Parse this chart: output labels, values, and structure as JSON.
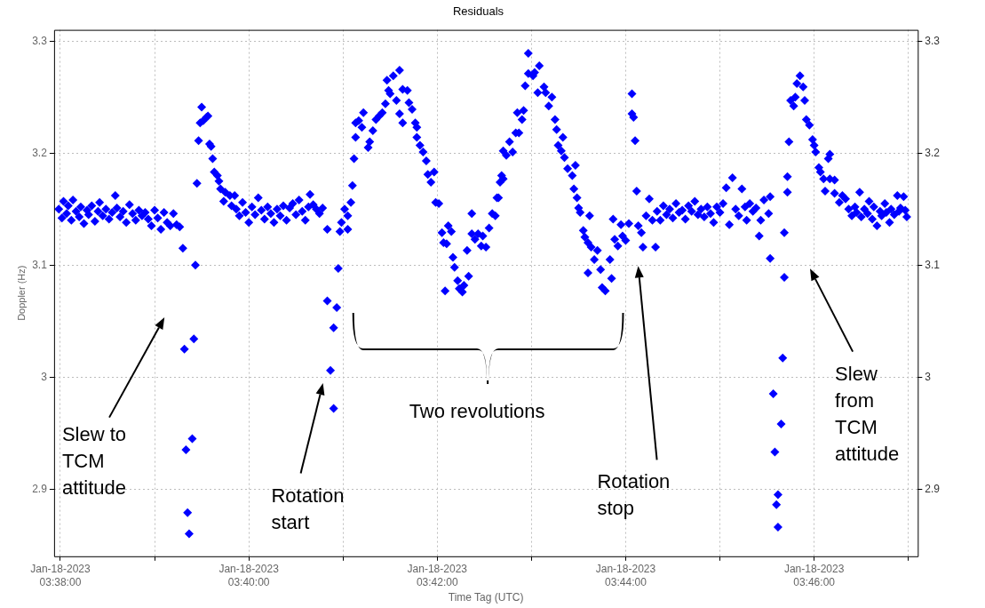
{
  "chart_data": {
    "type": "scatter",
    "title": "Residuals",
    "xlabel": "Time Tag (UTC)",
    "ylabel": "Doppler (Hz)",
    "xlim": [
      "2023-01-18T03:37:56",
      "2023-01-18T03:47:06"
    ],
    "xticks": [
      {
        "value": "2023-01-18T03:38:00",
        "label": "Jan-18-2023\n03:38:00"
      },
      {
        "value": "2023-01-18T03:39:00",
        "label": null
      },
      {
        "value": "2023-01-18T03:40:00",
        "label": "Jan-18-2023\n03:40:00"
      },
      {
        "value": "2023-01-18T03:41:00",
        "label": null
      },
      {
        "value": "2023-01-18T03:42:00",
        "label": "Jan-18-2023\n03:42:00"
      },
      {
        "value": "2023-01-18T03:43:00",
        "label": null
      },
      {
        "value": "2023-01-18T03:44:00",
        "label": "Jan-18-2023\n03:44:00"
      },
      {
        "value": "2023-01-18T03:45:00",
        "label": null
      },
      {
        "value": "2023-01-18T03:46:00",
        "label": "Jan-18-2023\n03:46:00"
      },
      {
        "value": "2023-01-18T03:47:00",
        "label": null
      }
    ],
    "ylim": [
      2.84,
      3.31
    ],
    "yticks": [
      2.9,
      3.0,
      3.1,
      3.2,
      3.3
    ],
    "y2lim": [
      2.84,
      3.31
    ],
    "y2ticks": [
      2.9,
      3.0,
      3.1,
      3.2,
      3.3
    ],
    "grid": true,
    "legend": false,
    "marker": "diamond",
    "annotations": [
      "Slew to TCM attitude",
      "Rotation start",
      "Two revolutions",
      "Rotation stop",
      "Slew from TCM attitude"
    ],
    "series": [
      {
        "color": "#0000ff",
        "x": [
          "2023-01-18T03:37:59",
          "2023-01-18T03:38:01",
          "2023-01-18T03:38:02",
          "2023-01-18T03:38:04",
          "2023-01-18T03:38:05",
          "2023-01-18T03:38:07",
          "2023-01-18T03:38:08",
          "2023-01-18T03:38:10",
          "2023-01-18T03:38:12",
          "2023-01-18T03:38:13",
          "2023-01-18T03:38:15",
          "2023-01-18T03:38:17",
          "2023-01-18T03:38:18",
          "2023-01-18T03:38:20",
          "2023-01-18T03:38:22",
          "2023-01-18T03:38:24",
          "2023-01-18T03:38:25",
          "2023-01-18T03:38:27",
          "2023-01-18T03:38:29",
          "2023-01-18T03:38:31",
          "2023-01-18T03:38:33",
          "2023-01-18T03:38:35",
          "2023-01-18T03:38:36",
          "2023-01-18T03:38:38",
          "2023-01-18T03:38:40",
          "2023-01-18T03:38:42",
          "2023-01-18T03:38:44",
          "2023-01-18T03:38:46",
          "2023-01-18T03:38:48",
          "2023-01-18T03:38:50",
          "2023-01-18T03:38:52",
          "2023-01-18T03:38:54",
          "2023-01-18T03:38:56",
          "2023-01-18T03:38:58",
          "2023-01-18T03:39:00",
          "2023-01-18T03:39:02",
          "2023-01-18T03:39:04",
          "2023-01-18T03:39:06",
          "2023-01-18T03:39:08",
          "2023-01-18T03:39:10",
          "2023-01-18T03:39:12",
          "2023-01-18T03:39:14",
          "2023-01-18T03:39:16",
          "2023-01-18T03:39:18",
          "2023-01-18T03:39:19",
          "2023-01-18T03:39:20",
          "2023-01-18T03:39:21",
          "2023-01-18T03:39:22",
          "2023-01-18T03:39:24",
          "2023-01-18T03:39:25",
          "2023-01-18T03:39:26",
          "2023-01-18T03:39:27",
          "2023-01-18T03:39:28",
          "2023-01-18T03:39:29",
          "2023-01-18T03:39:30",
          "2023-01-18T03:39:31",
          "2023-01-18T03:39:33",
          "2023-01-18T03:39:34",
          "2023-01-18T03:39:35",
          "2023-01-18T03:39:36",
          "2023-01-18T03:39:37",
          "2023-01-18T03:39:38",
          "2023-01-18T03:39:40",
          "2023-01-18T03:39:41",
          "2023-01-18T03:39:42",
          "2023-01-18T03:39:44",
          "2023-01-18T03:39:45",
          "2023-01-18T03:39:48",
          "2023-01-18T03:39:49",
          "2023-01-18T03:39:51",
          "2023-01-18T03:39:52",
          "2023-01-18T03:39:54",
          "2023-01-18T03:39:56",
          "2023-01-18T03:39:58",
          "2023-01-18T03:40:00",
          "2023-01-18T03:40:02",
          "2023-01-18T03:40:04",
          "2023-01-18T03:40:06",
          "2023-01-18T03:40:08",
          "2023-01-18T03:40:10",
          "2023-01-18T03:40:12",
          "2023-01-18T03:40:14",
          "2023-01-18T03:40:16",
          "2023-01-18T03:40:18",
          "2023-01-18T03:40:20",
          "2023-01-18T03:40:22",
          "2023-01-18T03:40:24",
          "2023-01-18T03:40:26",
          "2023-01-18T03:40:28",
          "2023-01-18T03:40:30",
          "2023-01-18T03:40:32",
          "2023-01-18T03:40:34",
          "2023-01-18T03:40:36",
          "2023-01-18T03:40:38",
          "2023-01-18T03:40:39",
          "2023-01-18T03:40:41",
          "2023-01-18T03:40:43",
          "2023-01-18T03:40:45",
          "2023-01-18T03:40:47",
          "2023-01-18T03:40:50",
          "2023-01-18T03:40:50",
          "2023-01-18T03:40:52",
          "2023-01-18T03:40:54",
          "2023-01-18T03:40:54",
          "2023-01-18T03:40:56",
          "2023-01-18T03:40:57",
          "2023-01-18T03:40:58",
          "2023-01-18T03:40:59",
          "2023-01-18T03:41:01",
          "2023-01-18T03:41:03",
          "2023-01-18T03:41:03",
          "2023-01-18T03:41:05",
          "2023-01-18T03:41:06",
          "2023-01-18T03:41:07",
          "2023-01-18T03:41:08",
          "2023-01-18T03:41:08",
          "2023-01-18T03:41:10",
          "2023-01-18T03:41:12",
          "2023-01-18T03:41:13",
          "2023-01-18T03:41:16",
          "2023-01-18T03:41:17",
          "2023-01-18T03:41:19",
          "2023-01-18T03:41:21",
          "2023-01-18T03:41:23",
          "2023-01-18T03:41:25",
          "2023-01-18T03:41:27",
          "2023-01-18T03:41:28",
          "2023-01-18T03:41:29",
          "2023-01-18T03:41:30",
          "2023-01-18T03:41:32",
          "2023-01-18T03:41:34",
          "2023-01-18T03:41:36",
          "2023-01-18T03:41:36",
          "2023-01-18T03:41:38",
          "2023-01-18T03:41:38",
          "2023-01-18T03:41:41",
          "2023-01-18T03:41:42",
          "2023-01-18T03:41:44",
          "2023-01-18T03:41:46",
          "2023-01-18T03:41:47",
          "2023-01-18T03:41:47",
          "2023-01-18T03:41:49",
          "2023-01-18T03:41:51",
          "2023-01-18T03:41:53",
          "2023-01-18T03:41:54",
          "2023-01-18T03:41:56",
          "2023-01-18T03:41:58",
          "2023-01-18T03:41:59",
          "2023-01-18T03:42:01",
          "2023-01-18T03:42:03",
          "2023-01-18T03:42:04",
          "2023-01-18T03:42:05",
          "2023-01-18T03:42:06",
          "2023-01-18T03:42:07",
          "2023-01-18T03:42:09",
          "2023-01-18T03:42:10",
          "2023-01-18T03:42:11",
          "2023-01-18T03:42:13",
          "2023-01-18T03:42:14",
          "2023-01-18T03:42:16",
          "2023-01-18T03:42:17",
          "2023-01-18T03:42:19",
          "2023-01-18T03:42:20",
          "2023-01-18T03:42:22",
          "2023-01-18T03:42:22",
          "2023-01-18T03:42:24",
          "2023-01-18T03:42:26",
          "2023-01-18T03:42:28",
          "2023-01-18T03:42:29",
          "2023-01-18T03:42:31",
          "2023-01-18T03:42:33",
          "2023-01-18T03:42:35",
          "2023-01-18T03:42:37",
          "2023-01-18T03:42:38",
          "2023-01-18T03:42:39",
          "2023-01-18T03:42:40",
          "2023-01-18T03:42:41",
          "2023-01-18T03:42:42",
          "2023-01-18T03:42:42",
          "2023-01-18T03:42:44",
          "2023-01-18T03:42:46",
          "2023-01-18T03:42:48",
          "2023-01-18T03:42:50",
          "2023-01-18T03:42:51",
          "2023-01-18T03:42:52",
          "2023-01-18T03:42:54",
          "2023-01-18T03:42:55",
          "2023-01-18T03:42:56",
          "2023-01-18T03:42:58",
          "2023-01-18T03:42:58",
          "2023-01-18T03:43:01",
          "2023-01-18T03:43:02",
          "2023-01-18T03:43:04",
          "2023-01-18T03:43:05",
          "2023-01-18T03:43:08",
          "2023-01-18T03:43:09",
          "2023-01-18T03:43:11",
          "2023-01-18T03:43:13",
          "2023-01-18T03:43:15",
          "2023-01-18T03:43:16",
          "2023-01-18T03:43:17",
          "2023-01-18T03:43:19",
          "2023-01-18T03:43:20",
          "2023-01-18T03:43:21",
          "2023-01-18T03:43:23",
          "2023-01-18T03:43:26",
          "2023-01-18T03:43:27",
          "2023-01-18T03:43:28",
          "2023-01-18T03:43:29",
          "2023-01-18T03:43:30",
          "2023-01-18T03:43:31",
          "2023-01-18T03:43:33",
          "2023-01-18T03:43:34",
          "2023-01-18T03:43:36",
          "2023-01-18T03:43:36",
          "2023-01-18T03:43:37",
          "2023-01-18T03:43:38",
          "2023-01-18T03:43:40",
          "2023-01-18T03:43:42",
          "2023-01-18T03:43:44",
          "2023-01-18T03:43:45",
          "2023-01-18T03:43:47",
          "2023-01-18T03:43:50",
          "2023-01-18T03:43:51",
          "2023-01-18T03:43:52",
          "2023-01-18T03:43:53",
          "2023-01-18T03:43:55",
          "2023-01-18T03:43:57",
          "2023-01-18T03:43:58",
          "2023-01-18T03:44:00",
          "2023-01-18T03:44:02",
          "2023-01-18T03:44:04",
          "2023-01-18T03:44:04",
          "2023-01-18T03:44:05",
          "2023-01-18T03:44:06",
          "2023-01-18T03:44:07",
          "2023-01-18T03:44:08",
          "2023-01-18T03:44:10",
          "2023-01-18T03:44:11",
          "2023-01-18T03:44:13",
          "2023-01-18T03:44:15",
          "2023-01-18T03:44:17",
          "2023-01-18T03:44:19",
          "2023-01-18T03:44:20",
          "2023-01-18T03:44:22",
          "2023-01-18T03:44:24",
          "2023-01-18T03:44:26",
          "2023-01-18T03:44:28",
          "2023-01-18T03:44:30",
          "2023-01-18T03:44:32",
          "2023-01-18T03:44:34",
          "2023-01-18T03:44:36",
          "2023-01-18T03:44:38",
          "2023-01-18T03:44:40",
          "2023-01-18T03:44:42",
          "2023-01-18T03:44:44",
          "2023-01-18T03:44:46",
          "2023-01-18T03:44:48",
          "2023-01-18T03:44:50",
          "2023-01-18T03:44:52",
          "2023-01-18T03:44:54",
          "2023-01-18T03:44:56",
          "2023-01-18T03:44:58",
          "2023-01-18T03:45:00",
          "2023-01-18T03:45:02",
          "2023-01-18T03:45:04",
          "2023-01-18T03:45:06",
          "2023-01-18T03:45:08",
          "2023-01-18T03:45:10",
          "2023-01-18T03:45:12",
          "2023-01-18T03:45:14",
          "2023-01-18T03:45:16",
          "2023-01-18T03:45:17",
          "2023-01-18T03:45:19",
          "2023-01-18T03:45:21",
          "2023-01-18T03:45:23",
          "2023-01-18T03:45:25",
          "2023-01-18T03:45:26",
          "2023-01-18T03:45:28",
          "2023-01-18T03:45:31",
          "2023-01-18T03:45:32",
          "2023-01-18T03:45:32",
          "2023-01-18T03:45:34",
          "2023-01-18T03:45:35",
          "2023-01-18T03:45:36",
          "2023-01-18T03:45:37",
          "2023-01-18T03:45:37",
          "2023-01-18T03:45:39",
          "2023-01-18T03:45:40",
          "2023-01-18T03:45:41",
          "2023-01-18T03:45:41",
          "2023-01-18T03:45:43",
          "2023-01-18T03:45:43",
          "2023-01-18T03:45:44",
          "2023-01-18T03:45:45",
          "2023-01-18T03:45:47",
          "2023-01-18T03:45:48",
          "2023-01-18T03:45:49",
          "2023-01-18T03:45:51",
          "2023-01-18T03:45:53",
          "2023-01-18T03:45:54",
          "2023-01-18T03:45:55",
          "2023-01-18T03:45:57",
          "2023-01-18T03:45:59",
          "2023-01-18T03:46:00",
          "2023-01-18T03:46:01",
          "2023-01-18T03:46:03",
          "2023-01-18T03:46:04",
          "2023-01-18T03:46:06",
          "2023-01-18T03:46:07",
          "2023-01-18T03:46:09",
          "2023-01-18T03:46:10",
          "2023-01-18T03:46:10",
          "2023-01-18T03:46:13",
          "2023-01-18T03:46:13",
          "2023-01-18T03:46:16",
          "2023-01-18T03:46:18",
          "2023-01-18T03:46:20",
          "2023-01-18T03:46:22",
          "2023-01-18T03:46:24",
          "2023-01-18T03:46:26",
          "2023-01-18T03:46:27",
          "2023-01-18T03:46:29",
          "2023-01-18T03:46:30",
          "2023-01-18T03:46:32",
          "2023-01-18T03:46:34",
          "2023-01-18T03:46:35",
          "2023-01-18T03:46:37",
          "2023-01-18T03:46:38",
          "2023-01-18T03:46:40",
          "2023-01-18T03:46:42",
          "2023-01-18T03:46:43",
          "2023-01-18T03:46:45",
          "2023-01-18T03:46:46",
          "2023-01-18T03:46:48",
          "2023-01-18T03:46:49",
          "2023-01-18T03:46:51",
          "2023-01-18T03:46:53",
          "2023-01-18T03:46:54",
          "2023-01-18T03:46:55",
          "2023-01-18T03:46:57",
          "2023-01-18T03:46:58",
          "2023-01-18T03:46:59"
        ],
        "values": [
          3.15,
          3.142,
          3.157,
          3.146,
          3.153,
          3.14,
          3.158,
          3.148,
          3.143,
          3.152,
          3.137,
          3.149,
          3.145,
          3.153,
          3.139,
          3.148,
          3.156,
          3.144,
          3.15,
          3.141,
          3.147,
          3.162,
          3.151,
          3.143,
          3.148,
          3.138,
          3.154,
          3.146,
          3.14,
          3.149,
          3.144,
          3.147,
          3.141,
          3.135,
          3.149,
          3.142,
          3.132,
          3.147,
          3.138,
          3.135,
          3.146,
          3.136,
          3.134,
          3.115,
          3.025,
          2.935,
          2.879,
          2.86,
          2.945,
          3.034,
          3.1,
          3.173,
          3.211,
          3.227,
          3.241,
          3.229,
          3.232,
          3.233,
          3.208,
          3.206,
          3.195,
          3.183,
          3.18,
          3.175,
          3.168,
          3.157,
          3.165,
          3.162,
          3.153,
          3.162,
          3.15,
          3.144,
          3.156,
          3.147,
          3.138,
          3.152,
          3.145,
          3.16,
          3.149,
          3.141,
          3.152,
          3.146,
          3.138,
          3.15,
          3.144,
          3.153,
          3.14,
          3.151,
          3.155,
          3.145,
          3.158,
          3.148,
          3.14,
          3.152,
          3.163,
          3.154,
          3.15,
          3.146,
          3.151,
          3.132,
          3.068,
          3.006,
          2.972,
          3.044,
          3.062,
          3.097,
          3.13,
          3.138,
          3.15,
          3.132,
          3.144,
          3.156,
          3.171,
          3.195,
          3.214,
          3.227,
          3.229,
          3.223,
          3.236,
          3.205,
          3.21,
          3.22,
          3.23,
          3.233,
          3.236,
          3.244,
          3.265,
          3.256,
          3.253,
          3.269,
          3.247,
          3.274,
          3.235,
          3.227,
          3.257,
          3.256,
          3.245,
          3.239,
          3.227,
          3.223,
          3.214,
          3.207,
          3.201,
          3.193,
          3.181,
          3.174,
          3.183,
          3.156,
          3.155,
          3.129,
          3.12,
          3.077,
          3.119,
          3.135,
          3.13,
          3.107,
          3.098,
          3.086,
          3.079,
          3.076,
          3.082,
          3.113,
          3.09,
          3.146,
          3.128,
          3.123,
          3.128,
          3.117,
          3.126,
          3.116,
          3.133,
          3.146,
          3.144,
          3.16,
          3.16,
          3.174,
          3.18,
          3.202,
          3.177,
          3.198,
          3.21,
          3.201,
          3.218,
          3.236,
          3.218,
          3.23,
          3.238,
          3.26,
          3.289,
          3.271,
          3.269,
          3.272,
          3.254,
          3.278,
          3.259,
          3.254,
          3.242,
          3.25,
          3.23,
          3.221,
          3.207,
          3.202,
          3.214,
          3.196,
          3.186,
          3.18,
          3.168,
          3.189,
          3.16,
          3.151,
          3.147,
          3.131,
          3.125,
          3.093,
          3.12,
          3.144,
          3.116,
          3.105,
          3.113,
          3.096,
          3.08,
          3.077,
          3.105,
          3.088,
          3.141,
          3.123,
          3.117,
          3.136,
          3.126,
          3.122,
          3.137,
          3.235,
          3.253,
          3.232,
          3.211,
          3.166,
          3.135,
          3.129,
          3.116,
          3.144,
          3.159,
          3.14,
          3.116,
          3.148,
          3.14,
          3.153,
          3.145,
          3.15,
          3.142,
          3.155,
          3.147,
          3.149,
          3.141,
          3.153,
          3.148,
          3.157,
          3.145,
          3.15,
          3.143,
          3.152,
          3.146,
          3.138,
          3.152,
          3.147,
          3.155,
          3.169,
          3.136,
          3.178,
          3.15,
          3.144,
          3.168,
          3.152,
          3.14,
          3.155,
          3.148,
          3.151,
          3.126,
          3.14,
          3.158,
          3.146,
          3.161,
          3.106,
          2.985,
          2.933,
          2.886,
          2.866,
          2.895,
          2.958,
          3.017,
          3.089,
          3.129,
          3.165,
          3.179,
          3.21,
          3.247,
          3.242,
          3.25,
          3.262,
          3.269,
          3.259,
          3.247,
          3.23,
          3.225,
          3.212,
          3.207,
          3.201,
          3.187,
          3.183,
          3.177,
          3.166,
          3.195,
          3.199,
          3.177,
          3.176,
          3.164,
          3.156,
          3.162,
          3.159,
          3.15,
          3.144,
          3.152,
          3.147,
          3.165,
          3.143,
          3.15,
          3.146,
          3.157,
          3.141,
          3.152,
          3.135,
          3.148,
          3.144,
          3.155,
          3.147,
          3.138,
          3.15,
          3.145,
          3.162,
          3.148,
          3.151,
          3.161,
          3.149,
          3.143
        ]
      }
    ]
  }
}
